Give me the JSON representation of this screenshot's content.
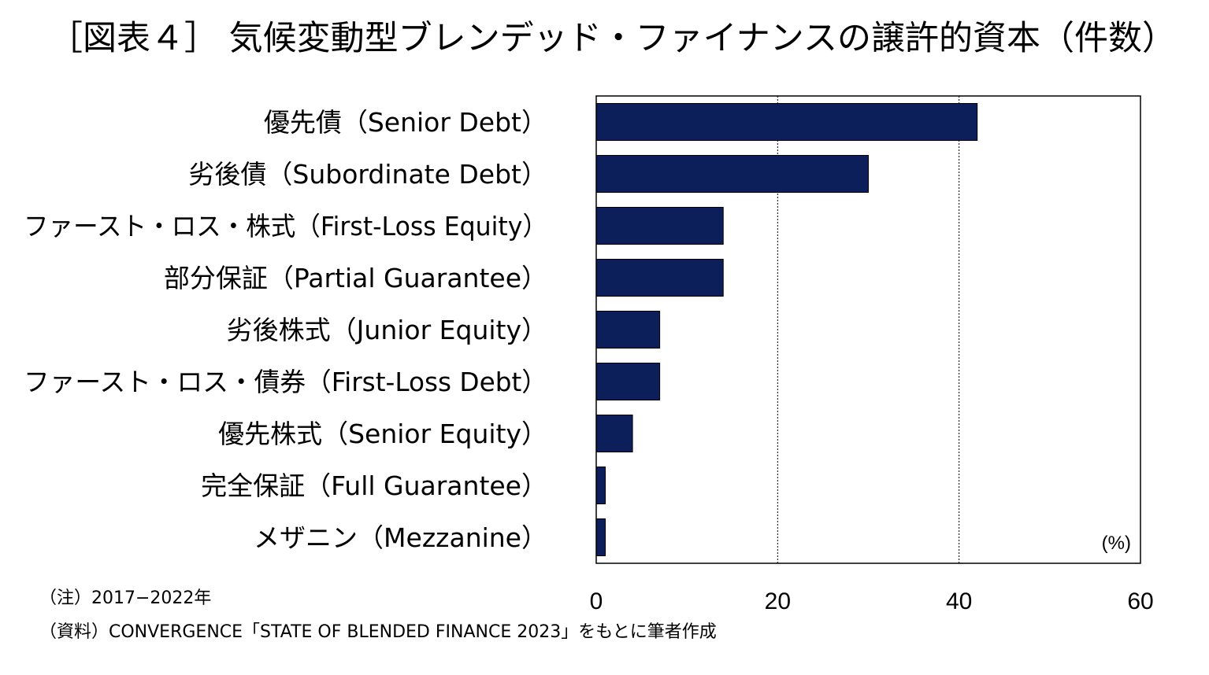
{
  "title": "［図表４］ 気候変動型ブレンデッド・ファイナンスの譲許的資本（件数）",
  "notes": {
    "note": "（注）2017−2022年",
    "source": "（資料）CONVERGENCE「STATE OF BLENDED FINANCE 2023」をもとに筆者作成"
  },
  "colors": {
    "bar": "#0c1f5a",
    "grid": "#000000",
    "background": "#ffffff"
  },
  "chart_data": {
    "type": "bar",
    "orientation": "horizontal",
    "title": "［図表４］ 気候変動型ブレンデッド・ファイナンスの譲許的資本（件数）",
    "categories": [
      "優先債（Senior Debt）",
      "劣後債（Subordinate Debt）",
      "ファースト・ロス・株式（First-Loss Equity）",
      "部分保証（Partial Guarantee）",
      "劣後株式（Junior Equity）",
      "ファースト・ロス・債券（First-Loss Debt）",
      "優先株式（Senior Equity）",
      "完全保証（Full Guarantee）",
      "メザニン（Mezzanine）"
    ],
    "values": [
      42,
      30,
      14,
      14,
      7,
      7,
      4,
      1,
      1
    ],
    "unit_label": "(%)",
    "xlim": [
      0,
      60
    ],
    "xticks": [
      "0",
      "20",
      "40",
      "60"
    ],
    "grid": "vertical dotted at 20 and 40",
    "legend": "none"
  }
}
